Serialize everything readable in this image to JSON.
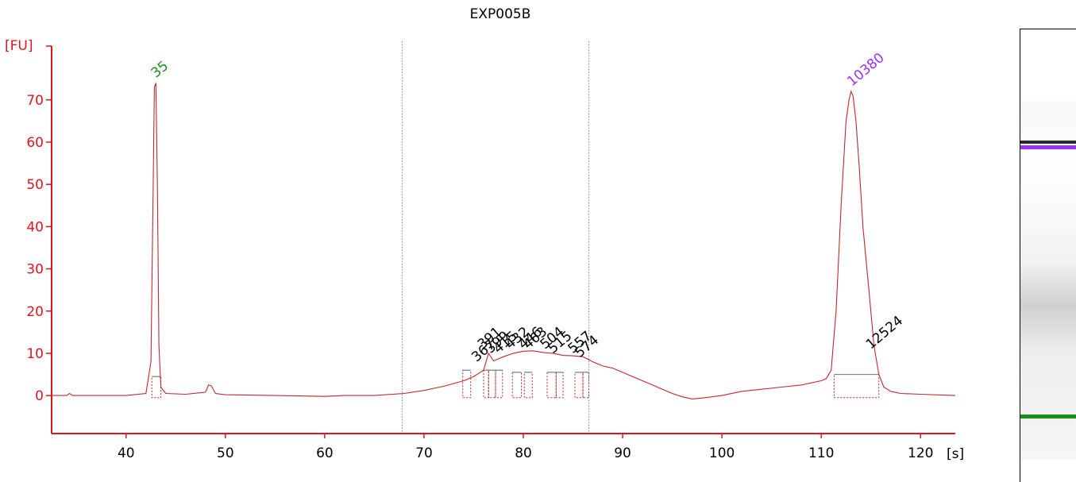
{
  "chart_data": {
    "type": "line",
    "title": "EXP005B",
    "ylabel": "[FU]",
    "xlabel": "[s]",
    "xlim": [
      32.5,
      123.5
    ],
    "ylim": [
      -9,
      82
    ],
    "x_ticks": [
      40,
      50,
      60,
      70,
      80,
      90,
      100,
      110,
      120
    ],
    "y_ticks": [
      0,
      10,
      20,
      30,
      40,
      50,
      60,
      70
    ],
    "colors": {
      "trace": "#c0282d",
      "axis": "#e0141e",
      "lower_marker": "#1a8c1a",
      "upper_marker": "#9b30ff",
      "peak_label": "#000000",
      "baseline": "#6f8a8a"
    },
    "series": [
      {
        "x": [
          32.5,
          34,
          34.3,
          34.6,
          35,
          38,
          40,
          42,
          42.5,
          42.7,
          42.85,
          43.0,
          43.15,
          43.3,
          43.5,
          44,
          46,
          48,
          48.3,
          48.6,
          49,
          50,
          55,
          60,
          62,
          65,
          68,
          70,
          72,
          74,
          75,
          76,
          76.5,
          77,
          78,
          79,
          80,
          81,
          82,
          83,
          84,
          85,
          86,
          87,
          88,
          89,
          90,
          91,
          92,
          93,
          94,
          95,
          96,
          97,
          98,
          100,
          102,
          104,
          106,
          108,
          110,
          110.5,
          111,
          111.5,
          112,
          112.5,
          112.8,
          113.0,
          113.2,
          113.5,
          113.8,
          114.2,
          114.8,
          115.3,
          115.8,
          116.3,
          117,
          118,
          120,
          123.5
        ],
        "y": [
          0,
          0,
          0.5,
          0,
          0,
          0,
          0,
          0.5,
          8,
          45,
          73,
          74,
          50,
          12,
          2,
          0.5,
          0.3,
          0.8,
          2.5,
          2.3,
          0.5,
          0.2,
          0,
          -0.2,
          0,
          0,
          0.5,
          1.2,
          2.2,
          3.5,
          4.5,
          6,
          10,
          8.2,
          9.2,
          10,
          10.5,
          10.6,
          10.2,
          10,
          9.5,
          9.4,
          9.2,
          8,
          7,
          6.5,
          5.5,
          4.5,
          3.5,
          2.5,
          1.5,
          0.5,
          -0.3,
          -0.8,
          -0.6,
          0,
          1,
          1.5,
          2,
          2.5,
          3.5,
          4,
          6,
          20,
          45,
          65,
          70,
          72,
          71,
          65,
          55,
          40,
          25,
          12,
          5,
          2,
          1,
          0.5,
          0.3,
          0
        ]
      }
    ],
    "markers": [
      {
        "x": 43.0,
        "y": 74,
        "label": "35",
        "color": "#1a8c1a"
      },
      {
        "x": 113.1,
        "y": 72,
        "label": "10380",
        "color": "#9b30ff"
      }
    ],
    "peak_labels": [
      {
        "x": 75.6,
        "y": 7.5,
        "label": "367"
      },
      {
        "x": 76.2,
        "y": 10.5,
        "label": "391"
      },
      {
        "x": 77.0,
        "y": 9.5,
        "label": "399"
      },
      {
        "x": 77.8,
        "y": 9.5,
        "label": "415"
      },
      {
        "x": 79.0,
        "y": 10.5,
        "label": "432"
      },
      {
        "x": 80.3,
        "y": 10.5,
        "label": "446"
      },
      {
        "x": 80.8,
        "y": 10.5,
        "label": "463"
      },
      {
        "x": 82.5,
        "y": 10.5,
        "label": "504"
      },
      {
        "x": 83.3,
        "y": 9.5,
        "label": "515"
      },
      {
        "x": 85.3,
        "y": 9.5,
        "label": "557"
      },
      {
        "x": 86.0,
        "y": 8.5,
        "label": "574"
      },
      {
        "x": 115.3,
        "y": 10.5,
        "label": "12524"
      }
    ],
    "region_lines": [
      67.8,
      86.6
    ],
    "peak_windows": [
      {
        "x0": 73.9,
        "x1": 74.7,
        "y": 6
      },
      {
        "x0": 76.0,
        "x1": 76.5,
        "y": 6
      },
      {
        "x0": 76.5,
        "x1": 77.2,
        "y": 6
      },
      {
        "x0": 77.2,
        "x1": 77.9,
        "y": 6
      },
      {
        "x0": 78.9,
        "x1": 79.8,
        "y": 5.5
      },
      {
        "x0": 80.1,
        "x1": 80.9,
        "y": 5.5
      },
      {
        "x0": 82.4,
        "x1": 83.3,
        "y": 5.5
      },
      {
        "x0": 83.3,
        "x1": 84.0,
        "y": 5.5
      },
      {
        "x0": 85.2,
        "x1": 86.0,
        "y": 5.5
      },
      {
        "x0": 86.0,
        "x1": 86.6,
        "y": 5.5
      },
      {
        "x0": 42.6,
        "x1": 43.5,
        "y": 4.5
      },
      {
        "x0": 111.3,
        "x1": 115.8,
        "y": 5
      }
    ]
  },
  "gel": {
    "bands": [
      {
        "color": "#2a2a2a",
        "position": 0.245,
        "thickness": 0.008
      },
      {
        "color": "#9b30ff",
        "position": 0.255,
        "thickness": 0.01
      },
      {
        "color": "#1a8c1a",
        "position": 0.85,
        "thickness": 0.009
      }
    ]
  }
}
